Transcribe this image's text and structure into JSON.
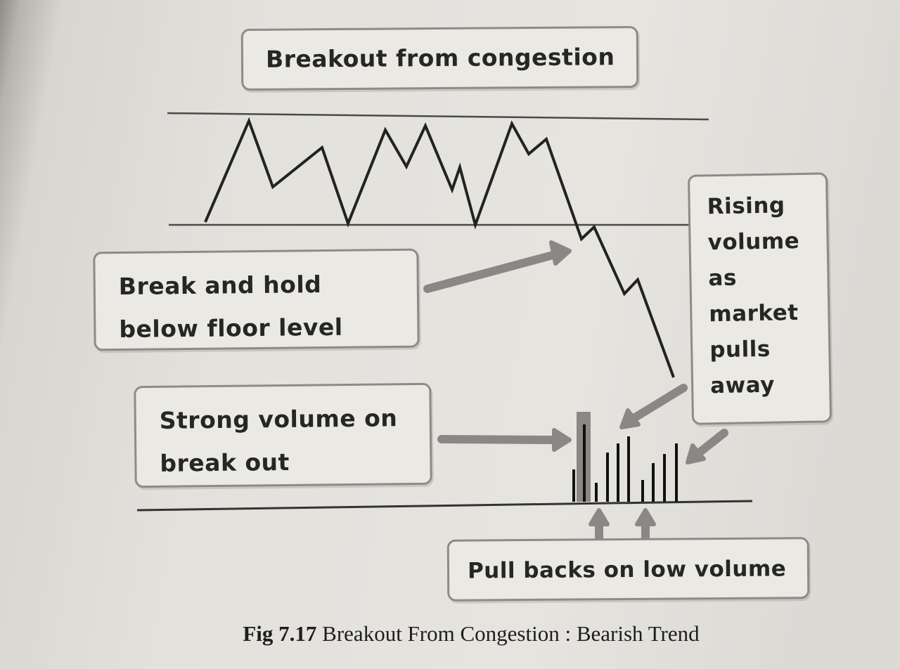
{
  "callouts": {
    "title": "Breakout from congestion",
    "break_hold": "Break and hold\nbelow floor level",
    "strong_volume": "Strong volume on\nbreak out",
    "rising_volume": "Rising\nvolume\nas\nmarket\npulls\naway",
    "pull_backs": "Pull backs on low volume"
  },
  "caption": {
    "figure_number": "Fig 7.17",
    "text": "Breakout From Congestion : Bearish Trend"
  },
  "colors": {
    "paper": "#e4e2dd",
    "ink": "#262626",
    "box_border": "#8d8b88",
    "highlight": "#8a8886"
  }
}
